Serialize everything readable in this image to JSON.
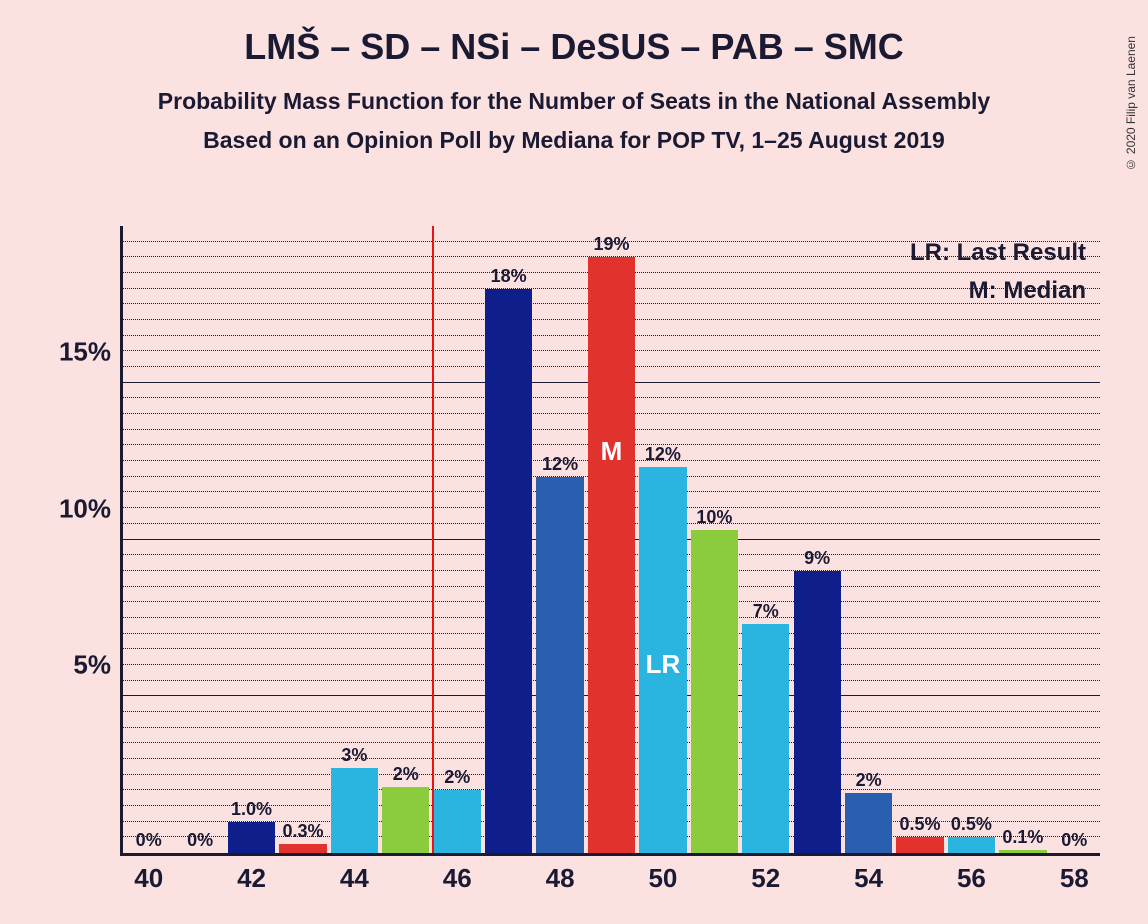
{
  "title": "LMŠ – SD – NSi – DeSUS – PAB – SMC",
  "subtitle1": "Probability Mass Function for the Number of Seats in the National Assembly",
  "subtitle2": "Based on an Opinion Poll by Mediana for POP TV, 1–25 August 2019",
  "copyright": "© 2020 Filip van Laenen",
  "legend": {
    "lr": "LR: Last Result",
    "m": "M: Median"
  },
  "chart": {
    "type": "bar",
    "background_color": "#fce1e1",
    "axis_color": "#1a1a33",
    "text_color": "#1a1a33",
    "ylim": [
      0,
      20
    ],
    "y_major_step": 5,
    "y_minor_step": 0.5,
    "ytick_labels": [
      "5%",
      "10%",
      "15%"
    ],
    "ytick_values": [
      5,
      10,
      15
    ],
    "x_start": 40,
    "x_end": 58,
    "xtick_step": 2,
    "bar_width_units": 0.92,
    "vline_x": 45.5,
    "vline_color": "#e11",
    "colors": {
      "navy": "#0e1f8c",
      "blue": "#2a5fb0",
      "red": "#e1322d",
      "cyan": "#2ab5e0",
      "green": "#8acc3e"
    },
    "bars": [
      {
        "x": 40,
        "value": 0,
        "label": "0%",
        "color": "navy"
      },
      {
        "x": 41,
        "value": 0,
        "label": "0%",
        "color": "blue"
      },
      {
        "x": 42,
        "value": 1.0,
        "label": "1.0%",
        "color": "navy"
      },
      {
        "x": 43,
        "value": 0.3,
        "label": "0.3%",
        "color": "red"
      },
      {
        "x": 44,
        "value": 2.7,
        "label": "3%",
        "color": "cyan"
      },
      {
        "x": 45,
        "value": 2.1,
        "label": "2%",
        "color": "green"
      },
      {
        "x": 46,
        "value": 2.0,
        "label": "2%",
        "color": "cyan"
      },
      {
        "x": 47,
        "value": 18,
        "label": "18%",
        "color": "navy"
      },
      {
        "x": 48,
        "value": 12,
        "label": "12%",
        "color": "blue"
      },
      {
        "x": 49,
        "value": 19,
        "label": "19%",
        "color": "red",
        "inner": "M",
        "inner_top": 0.3
      },
      {
        "x": 50,
        "value": 12.3,
        "label": "12%",
        "color": "cyan",
        "inner": "LR",
        "inner_top": 0.47
      },
      {
        "x": 51,
        "value": 10.3,
        "label": "10%",
        "color": "green"
      },
      {
        "x": 52,
        "value": 7.3,
        "label": "7%",
        "color": "cyan"
      },
      {
        "x": 53,
        "value": 9,
        "label": "9%",
        "color": "navy"
      },
      {
        "x": 54,
        "value": 1.9,
        "label": "2%",
        "color": "blue"
      },
      {
        "x": 55,
        "value": 0.5,
        "label": "0.5%",
        "color": "red"
      },
      {
        "x": 56,
        "value": 0.5,
        "label": "0.5%",
        "color": "cyan"
      },
      {
        "x": 57,
        "value": 0.1,
        "label": "0.1%",
        "color": "green"
      },
      {
        "x": 58,
        "value": 0,
        "label": "0%",
        "color": "navy"
      }
    ]
  }
}
